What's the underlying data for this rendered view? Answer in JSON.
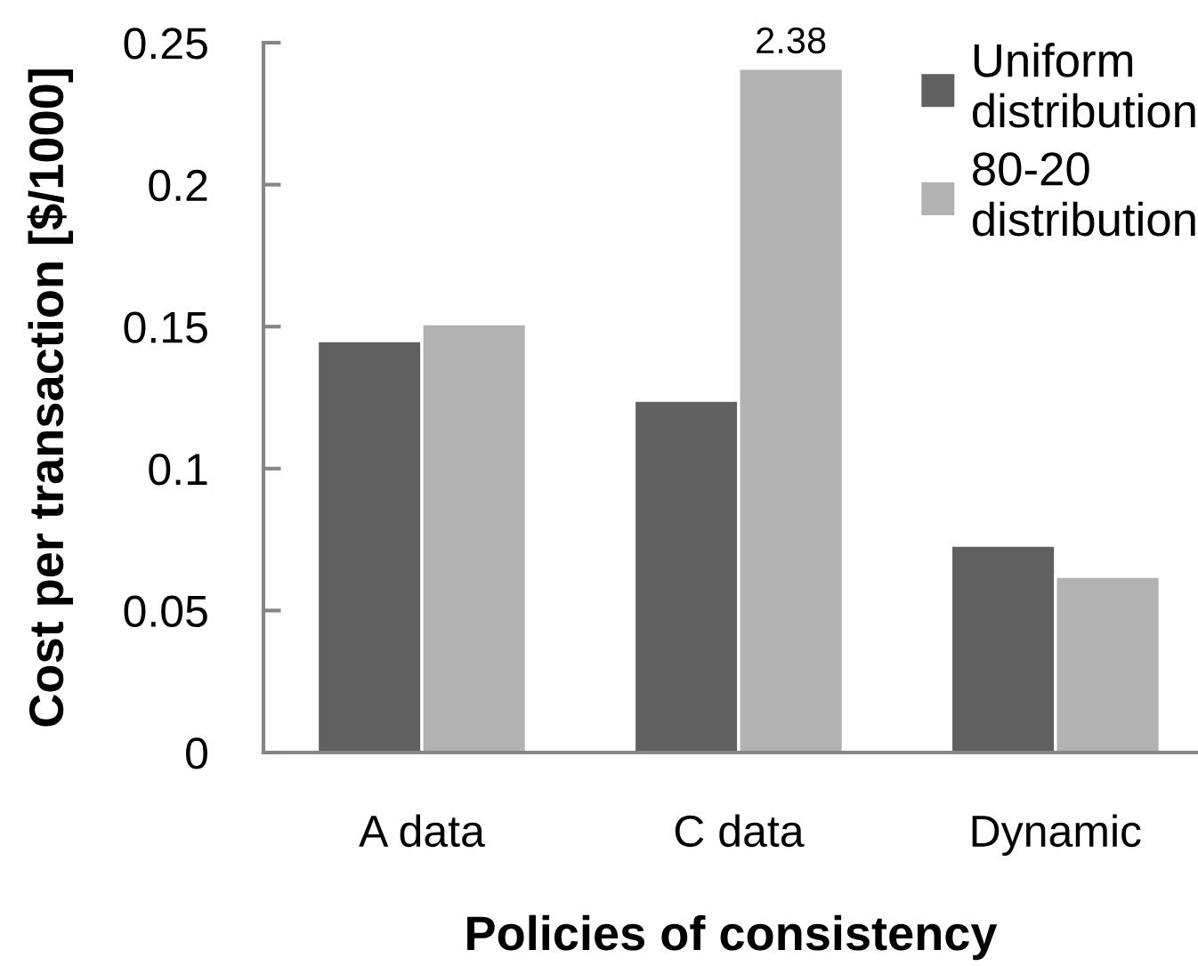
{
  "chart_data": {
    "type": "bar",
    "xlabel": "Policies of consistency",
    "ylabel": "Cost per transaction [$/1000]",
    "categories": [
      "A data",
      "C data",
      "Dynamic"
    ],
    "series": [
      {
        "name": "Uniform distribution",
        "color": "#606060",
        "values": [
          0.145,
          0.124,
          0.073
        ]
      },
      {
        "name": "80-20 distribution",
        "color": "#b2b2b2",
        "values": [
          0.151,
          0.241,
          0.062
        ]
      }
    ],
    "annotations": [
      {
        "text": "2.38",
        "x": "C data",
        "y": 0.241
      }
    ],
    "ylim": [
      0,
      0.25
    ],
    "yticks": [
      0,
      0.05,
      0.1,
      0.15,
      0.2,
      0.25
    ],
    "legend": "top right"
  }
}
